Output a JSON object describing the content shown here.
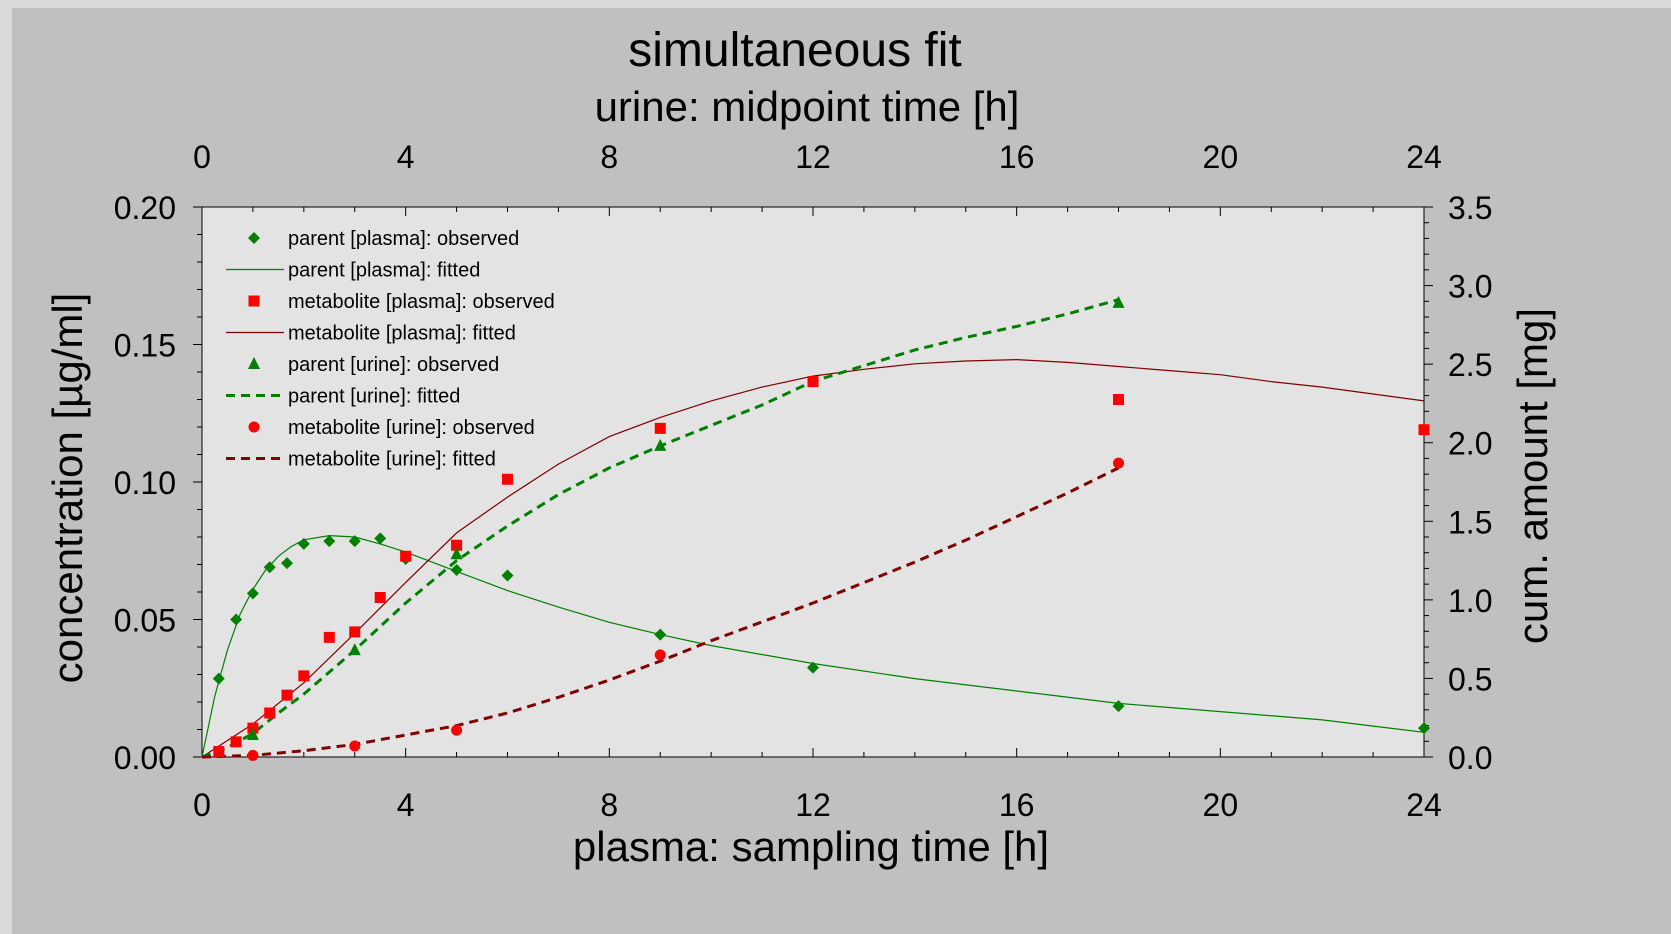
{
  "chart_data": {
    "type": "scatter",
    "title": "simultaneous fit",
    "xlabel": "plasma: sampling time [h]",
    "x2label": "urine: midpoint time [h]",
    "ylabel": "concentration [µg/ml]",
    "y2label": "cum. amount [mg]",
    "xlim": [
      0,
      24
    ],
    "ylim": [
      0,
      0.2
    ],
    "y2lim": [
      0,
      3.5
    ],
    "xticks": [
      "0",
      "4",
      "8",
      "12",
      "16",
      "20",
      "24"
    ],
    "x2ticks": [
      "0",
      "4",
      "8",
      "12",
      "16",
      "20",
      "24"
    ],
    "yticks": [
      "0.00",
      "0.05",
      "0.10",
      "0.15",
      "0.20"
    ],
    "y2ticks": [
      "0.0",
      "0.5",
      "1.0",
      "1.5",
      "2.0",
      "2.5",
      "3.0",
      "3.5"
    ],
    "grid": false,
    "legend_position": "top-left",
    "colors": {
      "green": "#008000",
      "red": "#ff0000",
      "darkred": "#800000",
      "plot_bg": "#e3e3e3",
      "figure_bg": "#c0c0c0"
    },
    "series": [
      {
        "name": "parent [plasma]: observed",
        "kind": "points",
        "marker": "diamond",
        "color": "#008000",
        "axis": "left",
        "x": [
          0.33,
          0.67,
          1,
          1.33,
          1.67,
          2,
          2.5,
          3,
          3.5,
          4,
          5,
          6,
          9,
          12,
          18,
          24
        ],
        "y": [
          0.0285,
          0.05,
          0.0595,
          0.069,
          0.0705,
          0.0775,
          0.0785,
          0.0785,
          0.0795,
          0.072,
          0.068,
          0.066,
          0.0445,
          0.0325,
          0.0185,
          0.0105
        ]
      },
      {
        "name": "parent [plasma]: fitted",
        "kind": "line",
        "style": "solid",
        "color": "#008000",
        "axis": "left",
        "x": [
          0,
          0.25,
          0.5,
          0.75,
          1,
          1.25,
          1.5,
          1.75,
          2,
          2.5,
          3,
          3.5,
          4,
          5,
          6,
          7,
          8,
          9,
          10,
          12,
          14,
          16,
          18,
          20,
          22,
          24
        ],
        "y": [
          0,
          0.022,
          0.039,
          0.052,
          0.061,
          0.068,
          0.073,
          0.0765,
          0.079,
          0.0805,
          0.08,
          0.0775,
          0.0745,
          0.0675,
          0.0605,
          0.0545,
          0.049,
          0.0445,
          0.0405,
          0.034,
          0.0285,
          0.024,
          0.0195,
          0.0165,
          0.0135,
          0.009
        ]
      },
      {
        "name": "metabolite [plasma]: observed",
        "kind": "points",
        "marker": "square",
        "color": "#ff0000",
        "axis": "left",
        "x": [
          0.33,
          0.67,
          1,
          1.33,
          1.67,
          2,
          2.5,
          3,
          3.5,
          4,
          5,
          6,
          9,
          12,
          18,
          24
        ],
        "y": [
          0.002,
          0.0055,
          0.0105,
          0.016,
          0.0225,
          0.0295,
          0.0435,
          0.0455,
          0.058,
          0.073,
          0.077,
          0.101,
          0.1195,
          0.1365,
          0.13,
          0.119
        ]
      },
      {
        "name": "metabolite [plasma]: fitted",
        "kind": "line",
        "style": "solid",
        "color": "#800000",
        "axis": "left",
        "x": [
          0,
          1,
          2,
          3,
          4,
          5,
          6,
          7,
          8,
          9,
          10,
          11,
          12,
          13,
          14,
          15,
          16,
          17,
          18,
          19,
          20,
          21,
          22,
          23,
          24
        ],
        "y": [
          0,
          0.012,
          0.027,
          0.045,
          0.0635,
          0.0815,
          0.0945,
          0.1065,
          0.1165,
          0.1235,
          0.1295,
          0.1345,
          0.1385,
          0.141,
          0.143,
          0.144,
          0.1445,
          0.1435,
          0.142,
          0.1405,
          0.139,
          0.1365,
          0.1345,
          0.132,
          0.1295
        ]
      },
      {
        "name": "parent [urine]: observed",
        "kind": "points",
        "marker": "triangle",
        "color": "#008000",
        "axis": "right",
        "x": [
          1,
          3,
          5,
          9,
          18
        ],
        "y": [
          0.14,
          0.68,
          1.29,
          1.98,
          2.89
        ]
      },
      {
        "name": "parent [urine]: fitted",
        "kind": "line",
        "style": "dashed",
        "color": "#008000",
        "axis": "right",
        "x": [
          0,
          0.5,
          1,
          1.5,
          2,
          3,
          4,
          5,
          6,
          7,
          8,
          9,
          10,
          11,
          12,
          13,
          14,
          15,
          16,
          17,
          18
        ],
        "y": [
          0,
          0.06,
          0.15,
          0.28,
          0.4,
          0.68,
          0.98,
          1.25,
          1.47,
          1.67,
          1.84,
          1.98,
          2.11,
          2.24,
          2.39,
          2.49,
          2.59,
          2.67,
          2.74,
          2.82,
          2.91
        ]
      },
      {
        "name": "metabolite [urine]: observed",
        "kind": "points",
        "marker": "circle",
        "color": "#ff0000",
        "axis": "right",
        "x": [
          1,
          3,
          5,
          9,
          18
        ],
        "y": [
          0.01,
          0.07,
          0.17,
          0.65,
          1.87
        ]
      },
      {
        "name": "metabolite [urine]: fitted",
        "kind": "line",
        "style": "dashed",
        "color": "#800000",
        "axis": "right",
        "x": [
          0,
          1,
          2,
          3,
          4,
          5,
          6,
          7,
          8,
          9,
          10,
          11,
          12,
          13,
          14,
          15,
          16,
          17,
          18
        ],
        "y": [
          0,
          0.01,
          0.04,
          0.08,
          0.14,
          0.2,
          0.28,
          0.38,
          0.49,
          0.61,
          0.74,
          0.86,
          0.98,
          1.11,
          1.24,
          1.38,
          1.53,
          1.68,
          1.84
        ]
      }
    ]
  }
}
